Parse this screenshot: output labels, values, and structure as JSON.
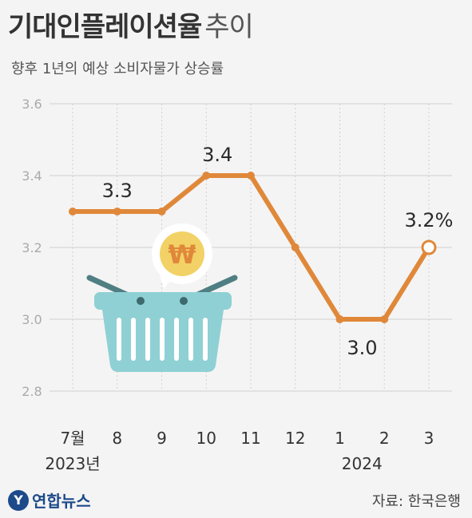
{
  "header": {
    "title": "기대인플레이션율",
    "title_suffix": "추이",
    "subtitle": "향후 1년의 예상 소비자물가 상승률"
  },
  "footer": {
    "logo_text": "연합뉴스",
    "source": "자료: 한국은행"
  },
  "colors": {
    "line": "#e0883a",
    "grid": "#d0d0d0",
    "basket": "#8fd0d4",
    "coin": "#f2d266"
  },
  "icons": [
    "shopping-basket-icon",
    "won-coin-icon"
  ],
  "chart_data": {
    "type": "line",
    "title": "기대인플레이션율 추이",
    "subtitle": "향후 1년의 예상 소비자물가 상승률",
    "categories": [
      "7월",
      "8",
      "9",
      "10",
      "11",
      "12",
      "1",
      "2",
      "3"
    ],
    "year_labels": [
      {
        "label": "2023년",
        "at": 0
      },
      {
        "label": "2024",
        "at": 7
      }
    ],
    "series": [
      {
        "values": [
          3.3,
          3.3,
          3.3,
          3.4,
          3.4,
          3.2,
          3.0,
          3.0,
          3.2
        ]
      }
    ],
    "yticks": [
      "2.8",
      "3.0",
      "3.2",
      "3.4",
      "3.6"
    ],
    "ylim": [
      2.8,
      3.6
    ],
    "grid": true,
    "data_labels": [
      {
        "index": 1,
        "text": "3.3"
      },
      {
        "index": 3,
        "text": "3.4"
      },
      {
        "index": 6,
        "text": "3.0"
      },
      {
        "index": 8,
        "text": "3.2%"
      }
    ]
  }
}
